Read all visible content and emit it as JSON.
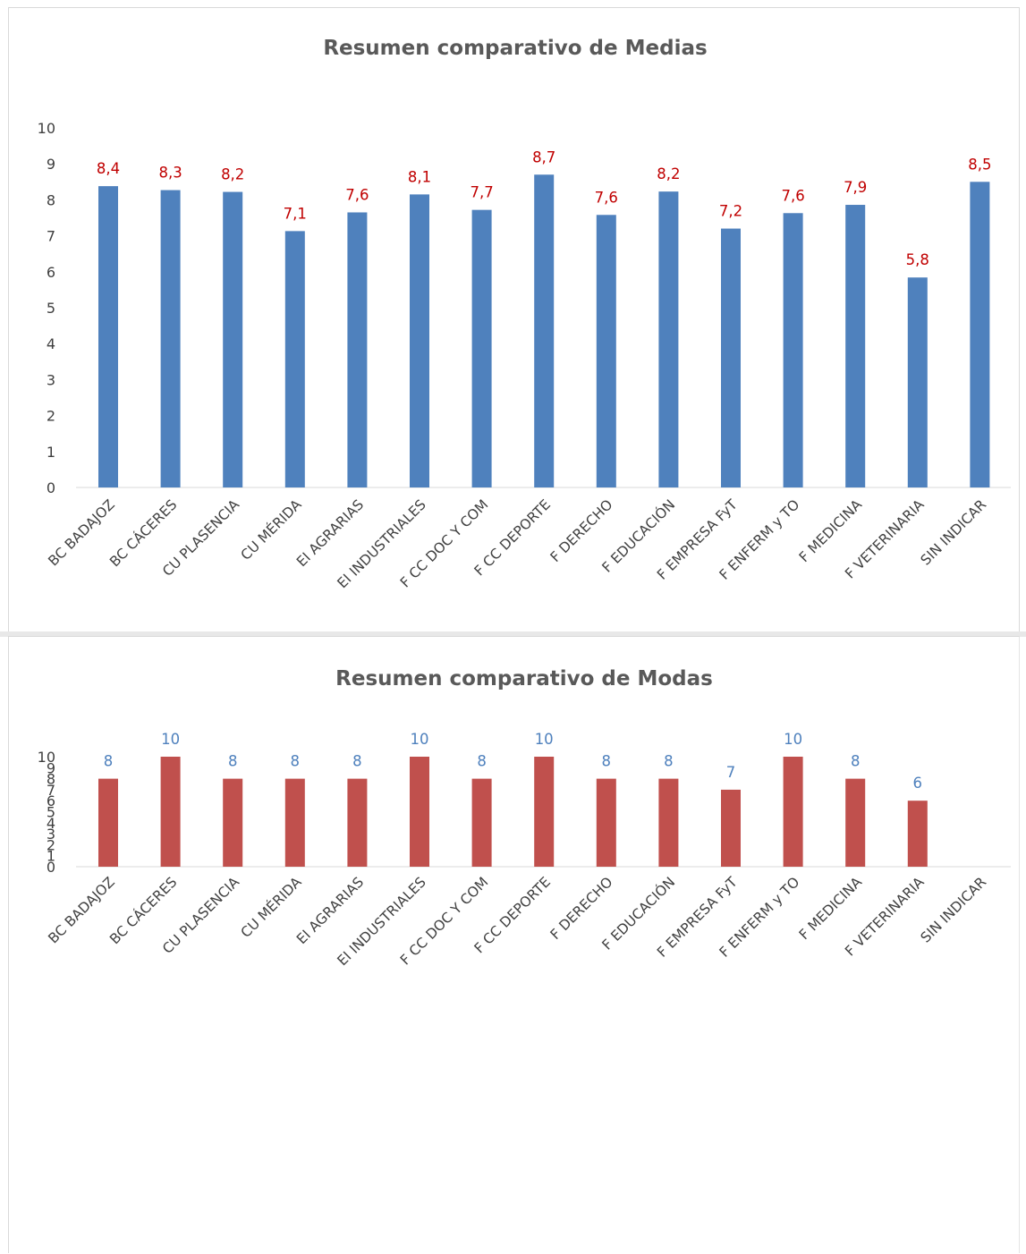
{
  "colors": {
    "medias_bar": "#4f81bd",
    "medias_label": "#c00000",
    "modas_bar": "#c0504d",
    "modas_label": "#4f81bd"
  },
  "chart_data": [
    {
      "type": "bar",
      "title": "Resumen comparativo de Medias",
      "categories": [
        "BC BADAJOZ",
        "BC CÁCERES",
        "CU PLASENCIA",
        "CU MÉRIDA",
        "EI AGRARIAS",
        "EI INDUSTRIALES",
        "F CC DOC Y COM",
        "F CC DEPORTE",
        "F DERECHO",
        "F EDUCACIÓN",
        "F EMPRESA FyT",
        "F ENFERM y TO",
        "F MEDICINA",
        "F VETERINARIA",
        "SIN INDICAR"
      ],
      "values": [
        8.38,
        8.27,
        8.22,
        7.13,
        7.65,
        8.15,
        7.72,
        8.7,
        7.58,
        8.23,
        7.2,
        7.63,
        7.86,
        5.84,
        8.5
      ],
      "data_labels": [
        "8,4",
        "8,3",
        "8,2",
        "7,1",
        "7,6",
        "8,1",
        "7,7",
        "8,7",
        "7,6",
        "8,2",
        "7,2",
        "7,6",
        "7,9",
        "5,8",
        "8,5"
      ],
      "yticks": [
        "0",
        "1",
        "2",
        "3",
        "4",
        "5",
        "6",
        "7",
        "8",
        "9",
        "10"
      ],
      "ylim": [
        0,
        10
      ],
      "grid": false,
      "legend": "none"
    },
    {
      "type": "bar",
      "title": "Resumen comparativo de Modas",
      "categories": [
        "BC BADAJOZ",
        "BC CÁCERES",
        "CU PLASENCIA",
        "CU MÉRIDA",
        "EI AGRARIAS",
        "EI INDUSTRIALES",
        "F CC DOC Y COM",
        "F CC DEPORTE",
        "F DERECHO",
        "F EDUCACIÓN",
        "F EMPRESA FyT",
        "F ENFERM y TO",
        "F MEDICINA",
        "F VETERINARIA",
        "SIN INDICAR"
      ],
      "values": [
        8,
        10,
        8,
        8,
        8,
        10,
        8,
        10,
        8,
        8,
        7,
        10,
        8,
        6,
        null
      ],
      "data_labels": [
        "8",
        "10",
        "8",
        "8",
        "8",
        "10",
        "8",
        "10",
        "8",
        "8",
        "7",
        "10",
        "8",
        "6",
        ""
      ],
      "yticks": [
        "0",
        "1",
        "2",
        "3",
        "4",
        "5",
        "6",
        "7",
        "8",
        "9",
        "10"
      ],
      "ylim": [
        0,
        10
      ],
      "grid": false,
      "legend": "none"
    }
  ]
}
